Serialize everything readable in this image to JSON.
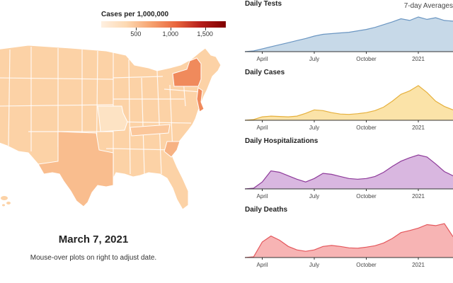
{
  "legend": {
    "title": "Cases per 1,000,000",
    "ticks": [
      {
        "value": 500,
        "label": "500"
      },
      {
        "value": 1000,
        "label": "1,000"
      },
      {
        "value": 1500,
        "label": "1,500"
      }
    ],
    "max_value": 1800,
    "color_scale": [
      "#fef0e1",
      "#fdd9b2",
      "#f6a26f",
      "#e9663d",
      "#b51d1a",
      "#7f0000"
    ]
  },
  "map": {
    "date": "March 7, 2021",
    "hint": "Mouse-over plots on right to adjust date.",
    "base_color": "#fcd2a6",
    "highlight_states": [
      {
        "name": "New York",
        "color": "#f08a5c"
      },
      {
        "name": "New Jersey",
        "color": "#f08a5c"
      },
      {
        "name": "South Carolina",
        "color": "#f7b283"
      },
      {
        "name": "Texas",
        "color": "#f9bd8e"
      },
      {
        "name": "Missouri",
        "color": "#fde3c4"
      },
      {
        "name": "Tennessee",
        "color": "#fbc79b"
      }
    ]
  },
  "charts_header": {
    "averages_label": "7-day Averages"
  },
  "chart_data": [
    {
      "type": "area",
      "title": "Daily Tests",
      "x_labels": [
        "April",
        "July",
        "October",
        "2021"
      ],
      "x_label_positions": [
        1,
        4,
        7,
        10
      ],
      "color": "#6b96c2",
      "fill": "#c7d9e8",
      "x": [
        0,
        0.5,
        1,
        1.5,
        2,
        2.5,
        3,
        3.5,
        4,
        4.5,
        5,
        5.5,
        6,
        6.5,
        7,
        7.5,
        8,
        8.5,
        9,
        9.5,
        10,
        10.5,
        11,
        11.5,
        12
      ],
      "values": [
        0.0,
        0.02,
        0.08,
        0.14,
        0.2,
        0.26,
        0.32,
        0.38,
        0.45,
        0.5,
        0.52,
        0.54,
        0.56,
        0.6,
        0.64,
        0.7,
        0.78,
        0.86,
        0.95,
        0.9,
        1.0,
        0.93,
        0.98,
        0.9,
        0.88
      ],
      "ylim": [
        0,
        1
      ]
    },
    {
      "type": "area",
      "title": "Daily Cases",
      "x_labels": [
        "April",
        "July",
        "October",
        "2021"
      ],
      "x_label_positions": [
        1,
        4,
        7,
        10
      ],
      "color": "#e6b13e",
      "fill": "#fbe3a8",
      "x": [
        0,
        0.5,
        1,
        1.5,
        2,
        2.5,
        3,
        3.5,
        4,
        4.5,
        5,
        5.5,
        6,
        6.5,
        7,
        7.5,
        8,
        8.5,
        9,
        9.5,
        10,
        10.5,
        11,
        11.5,
        12
      ],
      "values": [
        0.0,
        0.02,
        0.1,
        0.12,
        0.11,
        0.1,
        0.12,
        0.2,
        0.3,
        0.28,
        0.22,
        0.18,
        0.17,
        0.19,
        0.22,
        0.28,
        0.38,
        0.55,
        0.75,
        0.85,
        1.0,
        0.8,
        0.55,
        0.4,
        0.3
      ],
      "ylim": [
        0,
        1
      ]
    },
    {
      "type": "area",
      "title": "Daily Hospitalizations",
      "x_labels": [
        "April",
        "July",
        "October",
        "2021"
      ],
      "x_label_positions": [
        1,
        4,
        7,
        10
      ],
      "color": "#8e3b9a",
      "fill": "#d9b7e0",
      "x": [
        0,
        0.5,
        1,
        1.5,
        2,
        2.5,
        3,
        3.5,
        4,
        4.5,
        5,
        5.5,
        6,
        6.5,
        7,
        7.5,
        8,
        8.5,
        9,
        9.5,
        10,
        10.5,
        11,
        11.5,
        12
      ],
      "values": [
        0.0,
        0.02,
        0.2,
        0.52,
        0.48,
        0.38,
        0.28,
        0.2,
        0.3,
        0.45,
        0.42,
        0.36,
        0.3,
        0.28,
        0.3,
        0.36,
        0.48,
        0.65,
        0.8,
        0.9,
        0.98,
        0.92,
        0.72,
        0.5,
        0.38
      ],
      "ylim": [
        0,
        1
      ]
    },
    {
      "type": "area",
      "title": "Daily Deaths",
      "x_labels": [
        "April",
        "July",
        "October",
        "2021"
      ],
      "x_label_positions": [
        1,
        4,
        7,
        10
      ],
      "color": "#e4575c",
      "fill": "#f7b4b4",
      "x": [
        0,
        0.5,
        1,
        1.5,
        2,
        2.5,
        3,
        3.5,
        4,
        4.5,
        5,
        5.5,
        6,
        6.5,
        7,
        7.5,
        8,
        8.5,
        9,
        9.5,
        10,
        10.5,
        11,
        11.5,
        12
      ],
      "values": [
        0.0,
        0.02,
        0.45,
        0.62,
        0.5,
        0.32,
        0.22,
        0.18,
        0.22,
        0.32,
        0.35,
        0.32,
        0.28,
        0.27,
        0.3,
        0.34,
        0.42,
        0.55,
        0.72,
        0.78,
        0.85,
        0.95,
        0.92,
        0.98,
        0.6
      ],
      "ylim": [
        0,
        1
      ]
    }
  ]
}
